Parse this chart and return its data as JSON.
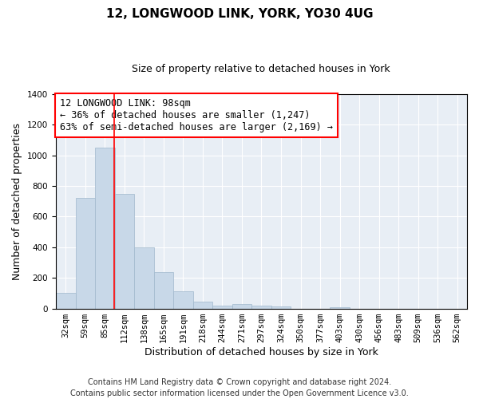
{
  "title": "12, LONGWOOD LINK, YORK, YO30 4UG",
  "subtitle": "Size of property relative to detached houses in York",
  "xlabel": "Distribution of detached houses by size in York",
  "ylabel": "Number of detached properties",
  "bar_color": "#c8d8e8",
  "bar_edge_color": "#a0b8cc",
  "background_color": "#e8eef5",
  "grid_color": "#ffffff",
  "categories": [
    "32sqm",
    "59sqm",
    "85sqm",
    "112sqm",
    "138sqm",
    "165sqm",
    "191sqm",
    "218sqm",
    "244sqm",
    "271sqm",
    "297sqm",
    "324sqm",
    "350sqm",
    "377sqm",
    "403sqm",
    "430sqm",
    "456sqm",
    "483sqm",
    "509sqm",
    "536sqm",
    "562sqm"
  ],
  "values": [
    100,
    720,
    1050,
    750,
    400,
    235,
    110,
    45,
    20,
    27,
    20,
    12,
    0,
    0,
    10,
    0,
    0,
    0,
    0,
    0,
    0
  ],
  "bin_edges": [
    18.5,
    45.5,
    72.0,
    98.5,
    125.0,
    151.5,
    178.0,
    204.5,
    231.0,
    257.5,
    284.0,
    310.5,
    337.0,
    363.5,
    390.0,
    416.5,
    443.0,
    469.5,
    496.0,
    522.5,
    549.0,
    575.5
  ],
  "red_line_x": 98,
  "ylim": [
    0,
    1400
  ],
  "annotation_text_line1": "12 LONGWOOD LINK: 98sqm",
  "annotation_text_line2": "← 36% of detached houses are smaller (1,247)",
  "annotation_text_line3": "63% of semi-detached houses are larger (2,169) →",
  "footer_line1": "Contains HM Land Registry data © Crown copyright and database right 2024.",
  "footer_line2": "Contains public sector information licensed under the Open Government Licence v3.0.",
  "title_fontsize": 11,
  "subtitle_fontsize": 9,
  "xlabel_fontsize": 9,
  "ylabel_fontsize": 9,
  "tick_fontsize": 7.5,
  "annotation_fontsize": 8.5,
  "footer_fontsize": 7
}
